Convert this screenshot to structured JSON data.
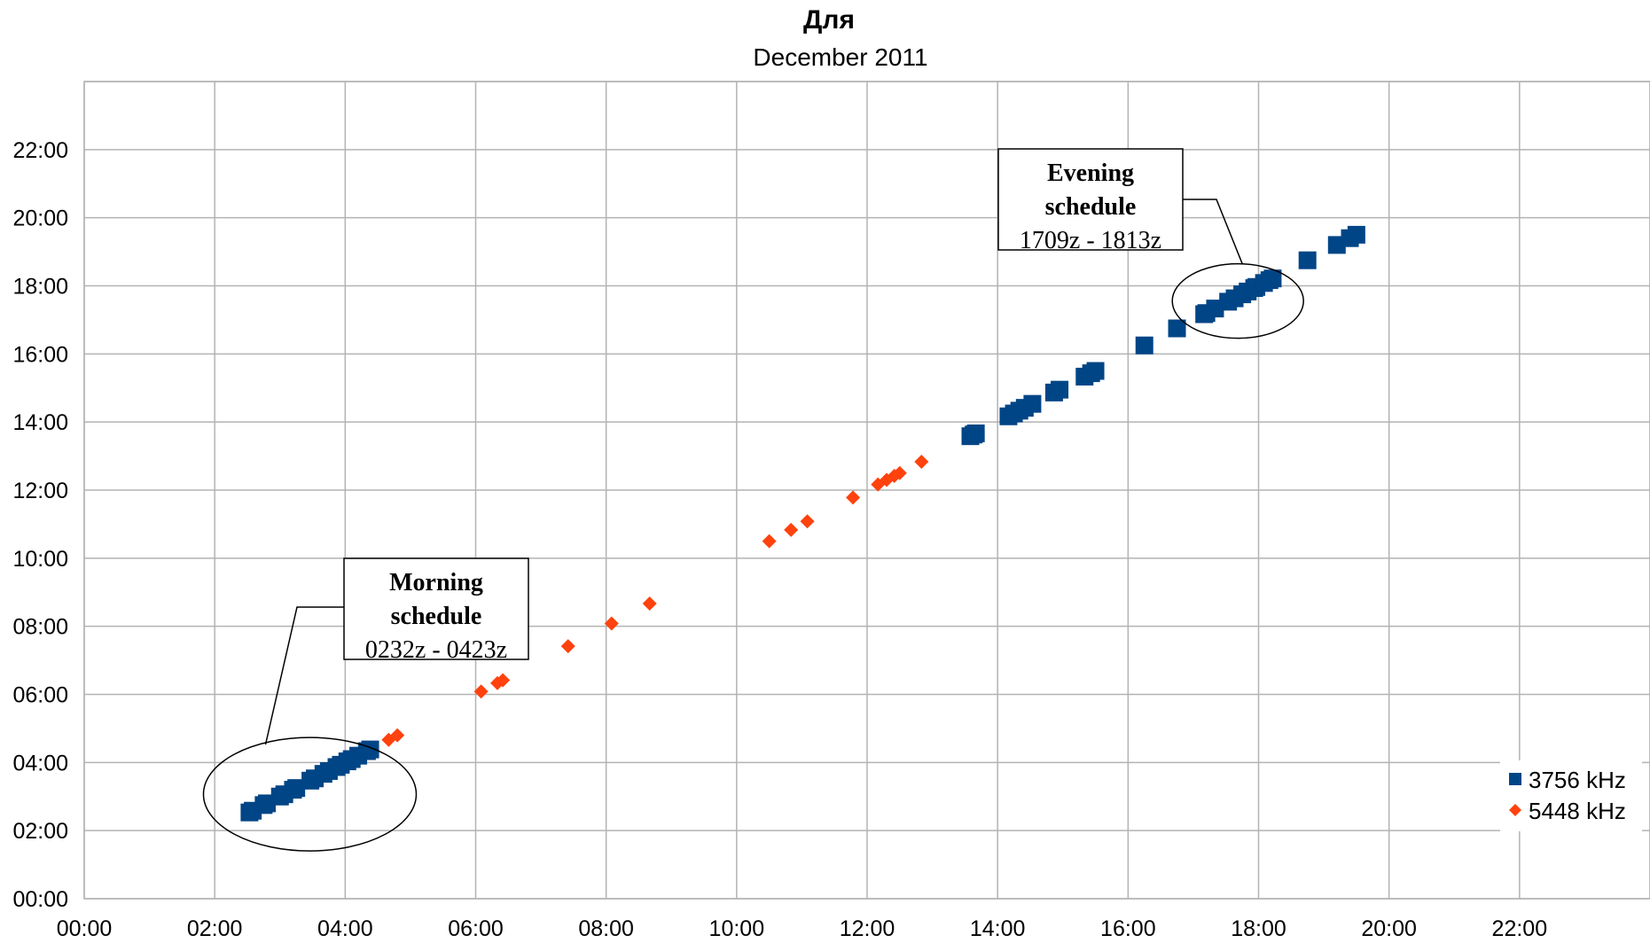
{
  "chart_data": {
    "type": "scatter",
    "title": "Для",
    "subtitle": "December 2011",
    "xlabel": "",
    "ylabel": "",
    "xlim": [
      "00:00",
      "24:00"
    ],
    "ylim": [
      "00:00",
      "24:00"
    ],
    "x_ticks": [
      "00:00",
      "02:00",
      "04:00",
      "06:00",
      "08:00",
      "10:00",
      "12:00",
      "14:00",
      "16:00",
      "18:00",
      "20:00",
      "22:00"
    ],
    "y_ticks": [
      "00:00",
      "02:00",
      "04:00",
      "06:00",
      "08:00",
      "10:00",
      "12:00",
      "14:00",
      "16:00",
      "18:00",
      "20:00",
      "22:00"
    ],
    "grid": true,
    "legend_position": "bottom-right",
    "series": [
      {
        "name": "3756 kHz",
        "color": "#004586",
        "marker": "square",
        "x": [
          "02:32",
          "02:35",
          "02:45",
          "02:48",
          "03:00",
          "03:04",
          "03:12",
          "03:15",
          "03:28",
          "03:32",
          "03:40",
          "03:45",
          "03:52",
          "03:56",
          "04:02",
          "04:06",
          "04:12",
          "04:20",
          "04:23",
          "13:35",
          "13:38",
          "13:40",
          "14:10",
          "14:15",
          "14:20",
          "14:25",
          "14:32",
          "14:52",
          "14:57",
          "15:20",
          "15:26",
          "15:30",
          "16:15",
          "16:45",
          "17:10",
          "17:12",
          "17:20",
          "17:32",
          "17:38",
          "17:45",
          "17:50",
          "17:56",
          "17:58",
          "18:05",
          "18:10",
          "18:13",
          "18:45",
          "19:12",
          "19:24",
          "19:30"
        ],
        "y": [
          "02:32",
          "02:35",
          "02:45",
          "02:48",
          "03:00",
          "03:04",
          "03:12",
          "03:15",
          "03:28",
          "03:32",
          "03:40",
          "03:45",
          "03:52",
          "03:56",
          "04:02",
          "04:06",
          "04:12",
          "04:20",
          "04:23",
          "13:35",
          "13:38",
          "13:40",
          "14:10",
          "14:15",
          "14:20",
          "14:25",
          "14:32",
          "14:52",
          "14:57",
          "15:20",
          "15:26",
          "15:30",
          "16:15",
          "16:45",
          "17:10",
          "17:12",
          "17:20",
          "17:32",
          "17:38",
          "17:45",
          "17:50",
          "17:56",
          "17:58",
          "18:05",
          "18:10",
          "18:13",
          "18:45",
          "19:12",
          "19:24",
          "19:30"
        ]
      },
      {
        "name": "5448 kHz",
        "color": "#ff420e",
        "marker": "diamond",
        "x": [
          "04:40",
          "04:48",
          "06:05",
          "06:20",
          "06:25",
          "07:25",
          "08:05",
          "08:40",
          "10:30",
          "10:50",
          "11:05",
          "11:47",
          "12:10",
          "12:18",
          "12:25",
          "12:30",
          "12:50"
        ],
        "y": [
          "04:40",
          "04:48",
          "06:05",
          "06:20",
          "06:25",
          "07:25",
          "08:05",
          "08:40",
          "10:30",
          "10:50",
          "11:05",
          "11:47",
          "12:10",
          "12:18",
          "12:25",
          "12:30",
          "12:50"
        ]
      }
    ],
    "annotations": [
      {
        "lines": [
          "Morning",
          "schedule",
          "0232z - 0423z"
        ],
        "range": [
          "02:32",
          "04:23"
        ]
      },
      {
        "lines": [
          "Evening",
          "schedule",
          "1709z - 1813z"
        ],
        "range": [
          "17:09",
          "18:13"
        ]
      }
    ]
  }
}
